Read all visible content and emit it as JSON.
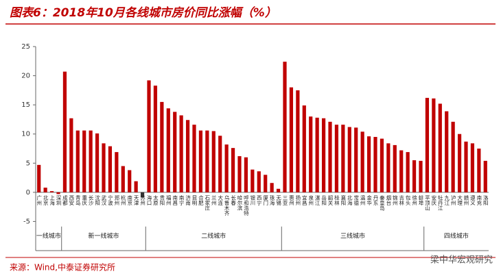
{
  "chart_data": {
    "type": "bar",
    "title": "图表6：2018年10月各线城市房价同比涨幅（%）",
    "source": "来源：Wind,中泰证券研究所",
    "watermark": "梁中华宏观研究",
    "color": "#c00000",
    "highlight_index": 16,
    "highlight_color": "#333333",
    "ylim": [
      -10,
      25
    ],
    "yticks": [
      -5,
      0,
      5,
      10,
      15,
      20,
      25
    ],
    "categories": [
      "广州",
      "北京",
      "上海",
      "深圳",
      "成都",
      "西安",
      "青岛",
      "重庆",
      "长沙",
      "沈阳",
      "武汉",
      "宁波",
      "郑州",
      "杭州",
      "南京",
      "天津",
      "苏州",
      "海口",
      "太原",
      "贵阳",
      "福州",
      "南昌",
      "南宁",
      "济南",
      "昆明",
      "合肥",
      "石家庄",
      "兰州",
      "大连",
      "乌鲁木齐",
      "长春",
      "哈尔滨",
      "呼和浩特",
      "银川",
      "西宁",
      "厦门",
      "珠海",
      "无锡",
      "三亚",
      "惠州",
      "扬州",
      "宜昌",
      "泉州",
      "湛江",
      "岳阳",
      "韶关",
      "桂林",
      "襄阳",
      "北海",
      "常德",
      "温州",
      "金华",
      "丹东",
      "秦皇岛",
      "烟台",
      "锦州",
      "吉林",
      "包头",
      "徐州",
      "蚌埠",
      "平顶山",
      "安庆",
      "牡丹江",
      "九江",
      "泸州",
      "大理",
      "赣州",
      "遵义",
      "南充",
      "洛阳"
    ],
    "values": [
      4.7,
      0.8,
      0.2,
      -0.3,
      20.7,
      12.7,
      10.6,
      10.6,
      10.6,
      10.1,
      8.4,
      7.9,
      6.9,
      4.5,
      3.8,
      1.9,
      -0.9,
      19.2,
      18.3,
      15.5,
      14.4,
      13.8,
      13.2,
      12.4,
      11.6,
      10.6,
      10.6,
      10.5,
      9.7,
      8.2,
      7.6,
      6.2,
      6.0,
      3.9,
      3.6,
      3.0,
      1.6,
      0.6,
      22.4,
      18.0,
      17.5,
      14.9,
      13.0,
      12.8,
      12.7,
      12.1,
      11.6,
      11.6,
      11.2,
      11.1,
      10.4,
      9.6,
      9.5,
      9.2,
      8.4,
      8.1,
      7.2,
      6.9,
      5.5,
      5.4,
      16.2,
      16.1,
      15.2,
      13.9,
      12.1,
      10.0,
      8.7,
      8.4,
      7.5,
      5.4
    ],
    "groups": [
      {
        "label": "一线城市",
        "count": 4
      },
      {
        "label": "新一线城市",
        "count": 13
      },
      {
        "label": "二线城市",
        "count": 21
      },
      {
        "label": "三线城市",
        "count": 22
      },
      {
        "label": "四线城市",
        "count": 10
      }
    ]
  }
}
